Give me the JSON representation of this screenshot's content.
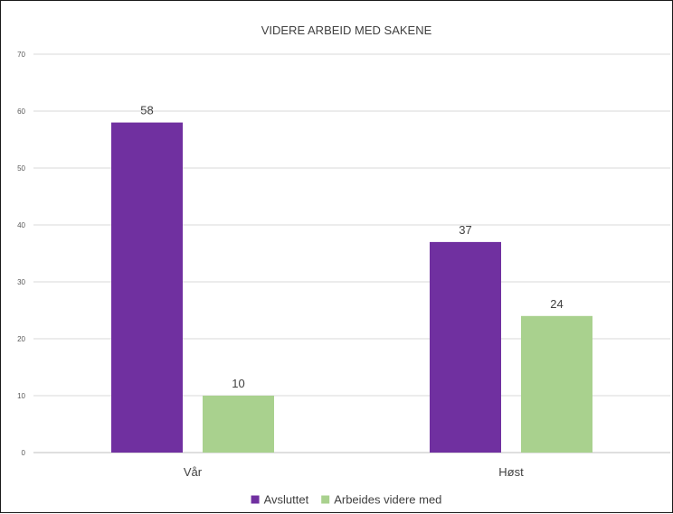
{
  "chart_data": {
    "type": "bar",
    "title": "VIDERE ARBEID MED SAKENE",
    "categories": [
      "Vår",
      "Høst"
    ],
    "series": [
      {
        "name": "Avsluttet",
        "values": [
          58,
          37
        ],
        "color": "#7030a0"
      },
      {
        "name": "Arbeides videre med",
        "values": [
          10,
          24
        ],
        "color": "#a9d18e"
      }
    ],
    "ylim": [
      0,
      70
    ],
    "yticks": [
      "0",
      "10",
      "20",
      "30",
      "40",
      "50",
      "60",
      "70"
    ],
    "grid": true,
    "legend": "bottom",
    "xlabel": "",
    "ylabel": ""
  }
}
